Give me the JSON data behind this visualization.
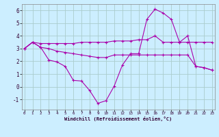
{
  "xlabel": "Windchill (Refroidissement éolien,°C)",
  "background_color": "#cceeff",
  "grid_color": "#aacccc",
  "line_color": "#aa00aa",
  "x": [
    0,
    1,
    2,
    3,
    4,
    5,
    6,
    7,
    8,
    9,
    10,
    11,
    12,
    13,
    14,
    15,
    16,
    17,
    18,
    19,
    20,
    21,
    22,
    23
  ],
  "line1": [
    3.0,
    3.5,
    3.4,
    3.4,
    3.4,
    3.4,
    3.4,
    3.5,
    3.5,
    3.5,
    3.5,
    3.6,
    3.6,
    3.6,
    3.7,
    3.7,
    4.0,
    3.5,
    3.5,
    3.5,
    3.5,
    3.5,
    3.5,
    3.5
  ],
  "line2": [
    3.0,
    3.5,
    3.1,
    2.1,
    1.95,
    1.6,
    0.5,
    0.45,
    -0.3,
    -1.3,
    -1.1,
    0.05,
    1.7,
    2.6,
    2.6,
    5.3,
    6.1,
    5.8,
    5.3,
    3.5,
    4.0,
    1.6,
    1.5,
    1.3
  ],
  "line3": [
    3.0,
    3.5,
    3.1,
    3.0,
    2.8,
    2.7,
    2.6,
    2.5,
    2.4,
    2.3,
    2.3,
    2.5,
    2.5,
    2.5,
    2.5,
    2.5,
    2.5,
    2.5,
    2.5,
    2.5,
    2.5,
    1.6,
    1.5,
    1.3
  ],
  "ylim": [
    -1.8,
    6.5
  ],
  "xlim": [
    -0.3,
    23.3
  ],
  "yticks": [
    -1,
    0,
    1,
    2,
    3,
    4,
    5,
    6
  ],
  "xticks": [
    0,
    1,
    2,
    3,
    4,
    5,
    6,
    7,
    8,
    9,
    10,
    11,
    12,
    13,
    14,
    15,
    16,
    17,
    18,
    19,
    20,
    21,
    22,
    23
  ]
}
